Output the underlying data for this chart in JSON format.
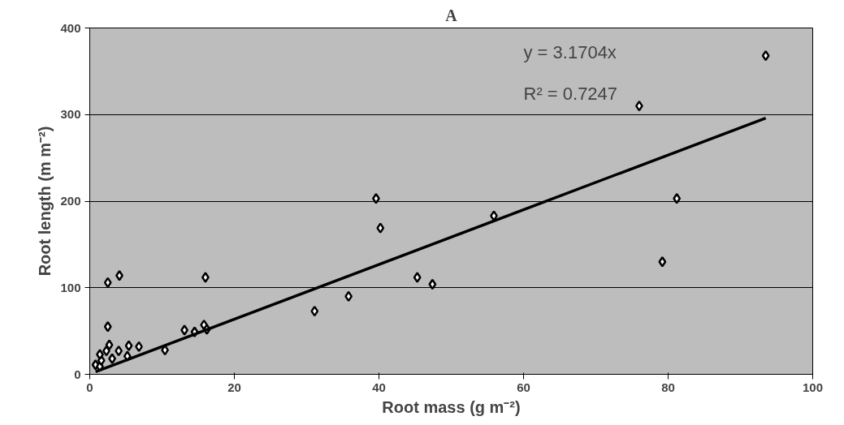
{
  "chart_data": {
    "type": "scatter",
    "title": "A",
    "xlabel": "Root mass (g m⁻²)",
    "ylabel": "Root length (m m⁻²)",
    "annotations": [
      "y = 3.1704x",
      "R² = 0.7247"
    ],
    "series": [
      {
        "color": "#000000",
        "marker": "diamond",
        "x": [
          0.8,
          1.4,
          1.6,
          1.4,
          2.3,
          3.1,
          2.7,
          2.5,
          2.5,
          4.1,
          4.0,
          5.2,
          5.4,
          6.8,
          10.4,
          13.1,
          14.5,
          15.8,
          16.2,
          16.0,
          31.1,
          35.8,
          39.6,
          40.2,
          45.3,
          47.4,
          55.9,
          76.0,
          79.2,
          81.2,
          93.5
        ],
        "values": [
          11,
          9,
          16,
          23,
          27,
          18,
          34,
          55,
          106,
          114,
          27,
          21,
          33,
          32,
          28,
          51,
          49,
          57,
          52,
          112,
          73,
          90,
          203,
          169,
          112,
          104,
          183,
          310,
          130,
          203,
          368
        ]
      },
      {
        "type": "line",
        "color": "#000000",
        "marker": "none",
        "x": [
          0.8,
          93.5
        ],
        "values": [
          3,
          296
        ]
      }
    ],
    "xlim": [
      0,
      100
    ],
    "ylim": [
      0,
      400
    ],
    "xticks": [
      0,
      20,
      40,
      60,
      80,
      100
    ],
    "yticks": [
      0,
      100,
      200,
      300,
      400
    ],
    "grid": "y"
  }
}
